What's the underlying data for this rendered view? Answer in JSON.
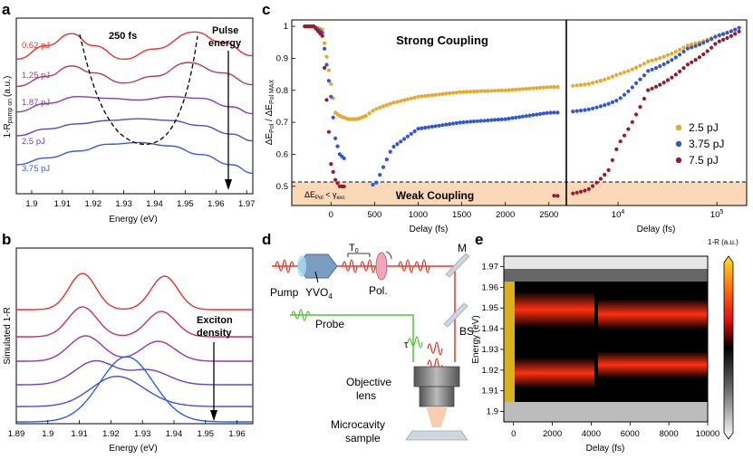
{
  "panels": {
    "a": {
      "letter": "a",
      "annotation": "250 fs",
      "arrow_label": "Pulse energy",
      "xlabel": "Energy (eV)",
      "ylabel_main": "1-R",
      "ylabel_sub": "pump on",
      "ylabel_unit": "(a.u.)",
      "xticks": [
        "1.9",
        "1.91",
        "1.92",
        "1.93",
        "1.94",
        "1.95",
        "1.96",
        "1.97"
      ],
      "legend": [
        {
          "label": "0.62 pJ",
          "color": "#e8302e"
        },
        {
          "label": "1.25 pJ",
          "color": "#b43a6a"
        },
        {
          "label": "1.87 pJ",
          "color": "#8a3ab0"
        },
        {
          "label": "2.5 pJ",
          "color": "#5a46c0"
        },
        {
          "label": "3.75 pJ",
          "color": "#3a5bd8"
        }
      ]
    },
    "b": {
      "letter": "b",
      "arrow_label": "Exciton density",
      "xlabel": "Energy (eV)",
      "ylabel": "Simulated 1-R",
      "xticks": [
        "1.89",
        "1.9",
        "1.91",
        "1.92",
        "1.93",
        "1.94",
        "1.95",
        "1.96"
      ],
      "colors": [
        "#e8302e",
        "#c0306a",
        "#9a35a0",
        "#7040c0",
        "#4a50d0",
        "#2a60e0"
      ]
    },
    "c": {
      "letter": "c",
      "strong_label": "Strong Coupling",
      "weak_label": "Weak Coupling",
      "weak_annot": "ΔE_Pol < γ_exc",
      "ylabel": "ΔE_Pol / ΔE_Pol MAX",
      "xlabel_left": "Delay (fs)",
      "xlabel_right": "Delay (fs)",
      "yticks": [
        "1",
        "0.9",
        "0.8",
        "0.7",
        "0.6",
        "0.5"
      ],
      "xticks_left": [
        "0",
        "500",
        "1000",
        "1500",
        "2000",
        "2500"
      ],
      "xticks_right": [
        "10^4",
        "10^5"
      ],
      "legend": [
        {
          "label": "2.5 pJ",
          "color": "#e8a82c"
        },
        {
          "label": "3.75 pJ",
          "color": "#2f55e0"
        },
        {
          "label": "7.5 pJ",
          "color": "#9a1a2a"
        }
      ]
    },
    "d": {
      "letter": "d",
      "labels": {
        "pump": "Pump",
        "yvo": "YVO4",
        "t0": "T0",
        "pol": "Pol.",
        "m": "M",
        "bs": "BS",
        "probe": "Probe",
        "tau": "τ",
        "objective": "Objective lens",
        "sample": "Microcavity sample"
      }
    },
    "e": {
      "letter": "e",
      "ylabel": "Energy (eV)",
      "xlabel": "Delay (fs)",
      "colorbar_label": "1-R (a.u.)",
      "yticks": [
        "1.97",
        "1.96",
        "1.95",
        "1.94",
        "1.93",
        "1.92",
        "1.91",
        "1.9"
      ],
      "xticks": [
        "0",
        "2000",
        "4000",
        "6000",
        "8000",
        "10000"
      ]
    }
  },
  "chart_data": [
    {
      "panel": "a",
      "type": "line",
      "xlabel": "Energy (eV)",
      "ylabel": "1-R pump on (a.u.)",
      "xlim": [
        1.895,
        1.972
      ],
      "series": [
        {
          "name": "0.62 pJ",
          "x": [
            1.895,
            1.905,
            1.913,
            1.92,
            1.93,
            1.94,
            1.953,
            1.962,
            1.972
          ],
          "values": [
            0.78,
            0.86,
            0.93,
            0.86,
            0.78,
            0.84,
            0.94,
            0.88,
            0.8
          ]
        },
        {
          "name": "1.25 pJ",
          "x": [
            1.895,
            1.905,
            1.913,
            1.92,
            1.93,
            1.94,
            1.951,
            1.962,
            1.972
          ],
          "values": [
            0.62,
            0.68,
            0.74,
            0.7,
            0.64,
            0.68,
            0.76,
            0.7,
            0.63
          ]
        },
        {
          "name": "1.87 pJ",
          "x": [
            1.895,
            1.905,
            1.915,
            1.925,
            1.935,
            1.945,
            1.955,
            1.965,
            1.972
          ],
          "values": [
            0.47,
            0.52,
            0.56,
            0.55,
            0.54,
            0.56,
            0.55,
            0.5,
            0.46
          ]
        },
        {
          "name": "2.5 pJ",
          "x": [
            1.895,
            1.905,
            1.915,
            1.925,
            1.935,
            1.945,
            1.955,
            1.965,
            1.972
          ],
          "values": [
            0.33,
            0.37,
            0.4,
            0.42,
            0.43,
            0.42,
            0.39,
            0.34,
            0.3
          ]
        },
        {
          "name": "3.75 pJ",
          "x": [
            1.895,
            1.905,
            1.915,
            1.925,
            1.935,
            1.945,
            1.955,
            1.965,
            1.972
          ],
          "values": [
            0.16,
            0.2,
            0.24,
            0.28,
            0.29,
            0.27,
            0.22,
            0.16,
            0.11
          ]
        }
      ]
    },
    {
      "panel": "b",
      "type": "line",
      "xlabel": "Energy (eV)",
      "ylabel": "Simulated 1-R",
      "xlim": [
        1.89,
        1.965
      ]
    },
    {
      "panel": "c",
      "type": "scatter",
      "ylabel": "ΔE_Pol / ΔE_Pol MAX",
      "xlabel": "Delay (fs)",
      "ylim": [
        0.44,
        1.02
      ],
      "series": [
        {
          "name": "2.5 pJ",
          "x": [
            -300,
            -200,
            -100,
            0,
            50,
            100,
            200,
            300,
            400,
            500,
            700,
            1000,
            1500,
            2000,
            2500,
            5000,
            10000,
            15000,
            20000,
            50000,
            100000,
            180000
          ],
          "values": [
            1.0,
            1.0,
            0.99,
            0.82,
            0.73,
            0.72,
            0.71,
            0.71,
            0.72,
            0.74,
            0.76,
            0.78,
            0.795,
            0.8,
            0.81,
            0.82,
            0.85,
            0.87,
            0.89,
            0.94,
            0.97,
            1.0
          ]
        },
        {
          "name": "3.75 pJ",
          "x": [
            -300,
            -200,
            -100,
            0,
            50,
            100,
            500,
            600,
            700,
            1000,
            1500,
            2000,
            2500,
            5000,
            10000,
            15000,
            20000,
            50000,
            100000,
            180000
          ],
          "values": [
            1.0,
            1.0,
            0.98,
            0.78,
            0.65,
            0.6,
            0.5,
            0.56,
            0.62,
            0.68,
            0.7,
            0.71,
            0.73,
            0.74,
            0.77,
            0.82,
            0.86,
            0.93,
            0.97,
            1.0
          ]
        },
        {
          "name": "7.5 pJ",
          "x": [
            -300,
            -200,
            -100,
            0,
            50,
            100,
            2600,
            5000,
            8000,
            10000,
            15000,
            20000,
            50000,
            100000,
            180000
          ],
          "values": [
            1.0,
            1.0,
            0.97,
            0.57,
            0.52,
            0.5,
            0.47,
            0.49,
            0.55,
            0.63,
            0.72,
            0.8,
            0.88,
            0.95,
            0.99
          ]
        }
      ]
    },
    {
      "panel": "e",
      "type": "heatmap",
      "xlabel": "Delay (fs)",
      "ylabel": "Energy (eV)",
      "xlim": [
        -500,
        10000
      ],
      "ylim": [
        1.895,
        1.975
      ]
    }
  ]
}
